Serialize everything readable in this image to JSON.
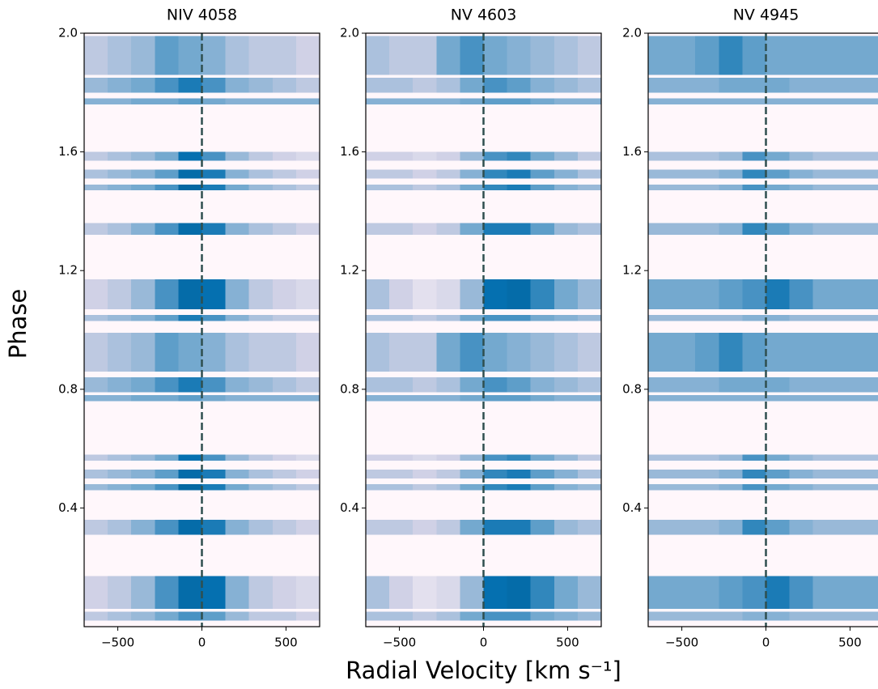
{
  "chart_data": [
    {
      "type": "heatmap",
      "title": "NIV 4058",
      "ylabel": "Phase",
      "xlim": [
        -700,
        700
      ],
      "xticks": [
        {
          "value": -500,
          "label": "−500"
        },
        0,
        500
      ],
      "ylim": [
        0,
        2
      ],
      "yticks": [
        0.4,
        0.8,
        1.2,
        {
          "value": 1.6,
          "label": "1.6"
        },
        {
          "value": 2,
          "label": "2.0"
        }
      ],
      "background": "#fff7fb",
      "colormap": [
        "#fff7fb",
        "#d0d1e6",
        "#74a9cf",
        "#0570b0",
        "#045a8d"
      ],
      "vline": 0,
      "vline_color": "#2f4f4f",
      "x_bins": [
        -700,
        -560,
        -420,
        -280,
        -140,
        0,
        140,
        280,
        420,
        560,
        700
      ],
      "y_bins": [
        [
          1.86,
          1.99
        ],
        [
          1.8,
          1.85
        ],
        [
          1.76,
          1.78
        ],
        [
          1.57,
          1.6
        ],
        [
          1.51,
          1.54
        ],
        [
          1.47,
          1.49
        ],
        [
          1.32,
          1.36
        ],
        [
          1.07,
          1.17
        ],
        [
          1.03,
          1.05
        ],
        [
          0.86,
          0.99
        ],
        [
          0.79,
          0.84
        ],
        [
          0.76,
          0.78
        ],
        [
          0.56,
          0.58
        ],
        [
          0.5,
          0.53
        ],
        [
          0.46,
          0.48
        ],
        [
          0.31,
          0.36
        ],
        [
          0.06,
          0.17
        ],
        [
          0.02,
          0.05
        ]
      ],
      "z": [
        [
          0.3,
          0.35,
          0.4,
          0.55,
          0.5,
          0.45,
          0.35,
          0.3,
          0.3,
          0.25
        ],
        [
          0.4,
          0.45,
          0.5,
          0.6,
          0.7,
          0.6,
          0.45,
          0.4,
          0.35,
          0.3
        ],
        [
          0.45,
          0.45,
          0.5,
          0.5,
          0.55,
          0.5,
          0.45,
          0.45,
          0.45,
          0.45
        ],
        [
          0.3,
          0.35,
          0.4,
          0.5,
          0.75,
          0.6,
          0.4,
          0.3,
          0.25,
          0.2
        ],
        [
          0.35,
          0.4,
          0.45,
          0.55,
          0.8,
          0.7,
          0.45,
          0.35,
          0.3,
          0.25
        ],
        [
          0.4,
          0.45,
          0.5,
          0.6,
          0.85,
          0.7,
          0.5,
          0.4,
          0.35,
          0.3
        ],
        [
          0.3,
          0.35,
          0.45,
          0.6,
          0.8,
          0.7,
          0.45,
          0.35,
          0.3,
          0.25
        ],
        [
          0.25,
          0.3,
          0.4,
          0.6,
          0.8,
          0.75,
          0.45,
          0.3,
          0.25,
          0.2
        ],
        [
          0.35,
          0.4,
          0.45,
          0.55,
          0.7,
          0.6,
          0.45,
          0.35,
          0.3,
          0.3
        ],
        [
          0.3,
          0.35,
          0.4,
          0.55,
          0.5,
          0.45,
          0.35,
          0.3,
          0.3,
          0.25
        ],
        [
          0.4,
          0.45,
          0.5,
          0.6,
          0.7,
          0.6,
          0.45,
          0.4,
          0.35,
          0.3
        ],
        [
          0.45,
          0.45,
          0.5,
          0.5,
          0.55,
          0.5,
          0.45,
          0.45,
          0.45,
          0.45
        ],
        [
          0.3,
          0.35,
          0.4,
          0.5,
          0.75,
          0.6,
          0.4,
          0.3,
          0.25,
          0.2
        ],
        [
          0.35,
          0.4,
          0.45,
          0.55,
          0.8,
          0.7,
          0.45,
          0.35,
          0.3,
          0.25
        ],
        [
          0.4,
          0.45,
          0.5,
          0.6,
          0.85,
          0.7,
          0.5,
          0.4,
          0.35,
          0.3
        ],
        [
          0.3,
          0.35,
          0.45,
          0.6,
          0.8,
          0.7,
          0.45,
          0.35,
          0.3,
          0.25
        ],
        [
          0.25,
          0.3,
          0.4,
          0.6,
          0.8,
          0.75,
          0.45,
          0.3,
          0.25,
          0.2
        ],
        [
          0.3,
          0.35,
          0.4,
          0.5,
          0.6,
          0.55,
          0.4,
          0.3,
          0.3,
          0.25
        ]
      ]
    },
    {
      "type": "heatmap",
      "title": "NV 4603",
      "xlabel": "Radial Velocity [km s⁻¹]",
      "xlim": [
        -700,
        700
      ],
      "xticks": [
        {
          "value": -500,
          "label": "−500"
        },
        0,
        500
      ],
      "ylim": [
        0,
        2
      ],
      "yticks": [
        0.4,
        0.8,
        1.2,
        {
          "value": 1.6,
          "label": "1.6"
        },
        {
          "value": 2,
          "label": "2.0"
        }
      ],
      "background": "#fff7fb",
      "colormap": [
        "#fff7fb",
        "#d0d1e6",
        "#74a9cf",
        "#0570b0",
        "#045a8d"
      ],
      "vline": 0,
      "vline_color": "#2f4f4f",
      "x_bins": [
        -700,
        -560,
        -420,
        -280,
        -140,
        0,
        140,
        280,
        420,
        560,
        700
      ],
      "y_bins": [
        [
          1.86,
          1.99
        ],
        [
          1.8,
          1.85
        ],
        [
          1.76,
          1.78
        ],
        [
          1.57,
          1.6
        ],
        [
          1.51,
          1.54
        ],
        [
          1.47,
          1.49
        ],
        [
          1.32,
          1.36
        ],
        [
          1.07,
          1.17
        ],
        [
          1.03,
          1.05
        ],
        [
          0.86,
          0.99
        ],
        [
          0.79,
          0.84
        ],
        [
          0.76,
          0.78
        ],
        [
          0.56,
          0.58
        ],
        [
          0.5,
          0.53
        ],
        [
          0.46,
          0.48
        ],
        [
          0.31,
          0.36
        ],
        [
          0.06,
          0.17
        ],
        [
          0.02,
          0.05
        ]
      ],
      "z": [
        [
          0.35,
          0.3,
          0.3,
          0.5,
          0.6,
          0.5,
          0.45,
          0.4,
          0.35,
          0.3
        ],
        [
          0.35,
          0.35,
          0.3,
          0.35,
          0.5,
          0.6,
          0.55,
          0.45,
          0.4,
          0.35
        ],
        [
          0.45,
          0.45,
          0.45,
          0.45,
          0.5,
          0.55,
          0.55,
          0.5,
          0.45,
          0.45
        ],
        [
          0.25,
          0.25,
          0.2,
          0.25,
          0.4,
          0.6,
          0.65,
          0.5,
          0.4,
          0.3
        ],
        [
          0.3,
          0.3,
          0.25,
          0.3,
          0.45,
          0.65,
          0.7,
          0.55,
          0.45,
          0.35
        ],
        [
          0.35,
          0.35,
          0.3,
          0.35,
          0.5,
          0.65,
          0.7,
          0.55,
          0.45,
          0.4
        ],
        [
          0.3,
          0.3,
          0.25,
          0.3,
          0.5,
          0.7,
          0.7,
          0.55,
          0.4,
          0.35
        ],
        [
          0.35,
          0.25,
          0.15,
          0.2,
          0.4,
          0.75,
          0.8,
          0.65,
          0.5,
          0.4
        ],
        [
          0.35,
          0.35,
          0.3,
          0.35,
          0.5,
          0.6,
          0.6,
          0.5,
          0.45,
          0.4
        ],
        [
          0.35,
          0.3,
          0.3,
          0.5,
          0.6,
          0.5,
          0.45,
          0.4,
          0.35,
          0.3
        ],
        [
          0.35,
          0.35,
          0.3,
          0.35,
          0.5,
          0.6,
          0.55,
          0.45,
          0.4,
          0.35
        ],
        [
          0.45,
          0.45,
          0.45,
          0.45,
          0.5,
          0.55,
          0.55,
          0.5,
          0.45,
          0.45
        ],
        [
          0.25,
          0.25,
          0.2,
          0.25,
          0.4,
          0.6,
          0.65,
          0.5,
          0.4,
          0.3
        ],
        [
          0.3,
          0.3,
          0.25,
          0.3,
          0.45,
          0.65,
          0.7,
          0.55,
          0.45,
          0.35
        ],
        [
          0.35,
          0.35,
          0.3,
          0.35,
          0.5,
          0.65,
          0.7,
          0.55,
          0.45,
          0.4
        ],
        [
          0.3,
          0.3,
          0.25,
          0.3,
          0.5,
          0.7,
          0.7,
          0.55,
          0.4,
          0.35
        ],
        [
          0.35,
          0.25,
          0.15,
          0.2,
          0.4,
          0.75,
          0.8,
          0.65,
          0.5,
          0.4
        ],
        [
          0.35,
          0.35,
          0.3,
          0.35,
          0.5,
          0.6,
          0.6,
          0.5,
          0.45,
          0.4
        ]
      ]
    },
    {
      "type": "heatmap",
      "title": "NV 4945",
      "xlim": [
        -700,
        700
      ],
      "xticks": [
        {
          "value": -500,
          "label": "−500"
        },
        0,
        500
      ],
      "ylim": [
        0,
        2
      ],
      "yticks": [
        0.4,
        0.8,
        1.2,
        {
          "value": 1.6,
          "label": "1.6"
        },
        {
          "value": 2,
          "label": "2.0"
        }
      ],
      "background": "#fff7fb",
      "colormap": [
        "#fff7fb",
        "#d0d1e6",
        "#74a9cf",
        "#0570b0",
        "#045a8d"
      ],
      "vline": 0,
      "vline_color": "#2f4f4f",
      "x_bins": [
        -700,
        -560,
        -420,
        -280,
        -140,
        0,
        140,
        280,
        420,
        560,
        700
      ],
      "y_bins": [
        [
          1.86,
          1.99
        ],
        [
          1.8,
          1.85
        ],
        [
          1.76,
          1.78
        ],
        [
          1.57,
          1.6
        ],
        [
          1.51,
          1.54
        ],
        [
          1.47,
          1.49
        ],
        [
          1.32,
          1.36
        ],
        [
          1.07,
          1.17
        ],
        [
          1.03,
          1.05
        ],
        [
          0.86,
          0.99
        ],
        [
          0.79,
          0.84
        ],
        [
          0.76,
          0.78
        ],
        [
          0.56,
          0.58
        ],
        [
          0.5,
          0.53
        ],
        [
          0.46,
          0.48
        ],
        [
          0.31,
          0.36
        ],
        [
          0.06,
          0.17
        ],
        [
          0.02,
          0.05
        ]
      ],
      "z": [
        [
          0.5,
          0.5,
          0.55,
          0.65,
          0.55,
          0.5,
          0.5,
          0.5,
          0.5,
          0.5
        ],
        [
          0.45,
          0.45,
          0.45,
          0.5,
          0.5,
          0.5,
          0.45,
          0.45,
          0.45,
          0.45
        ],
        [
          0.45,
          0.45,
          0.45,
          0.45,
          0.45,
          0.45,
          0.45,
          0.45,
          0.45,
          0.45
        ],
        [
          0.35,
          0.35,
          0.35,
          0.4,
          0.6,
          0.5,
          0.4,
          0.35,
          0.35,
          0.35
        ],
        [
          0.4,
          0.4,
          0.4,
          0.45,
          0.65,
          0.55,
          0.45,
          0.4,
          0.4,
          0.4
        ],
        [
          0.4,
          0.4,
          0.4,
          0.45,
          0.6,
          0.5,
          0.45,
          0.4,
          0.4,
          0.4
        ],
        [
          0.4,
          0.4,
          0.4,
          0.45,
          0.65,
          0.55,
          0.45,
          0.4,
          0.4,
          0.4
        ],
        [
          0.5,
          0.5,
          0.5,
          0.55,
          0.6,
          0.7,
          0.6,
          0.5,
          0.5,
          0.5
        ],
        [
          0.4,
          0.4,
          0.4,
          0.4,
          0.45,
          0.45,
          0.4,
          0.4,
          0.4,
          0.4
        ],
        [
          0.5,
          0.5,
          0.55,
          0.65,
          0.55,
          0.5,
          0.5,
          0.5,
          0.5,
          0.5
        ],
        [
          0.45,
          0.45,
          0.45,
          0.5,
          0.5,
          0.5,
          0.45,
          0.45,
          0.45,
          0.45
        ],
        [
          0.45,
          0.45,
          0.45,
          0.45,
          0.45,
          0.45,
          0.45,
          0.45,
          0.45,
          0.45
        ],
        [
          0.35,
          0.35,
          0.35,
          0.4,
          0.6,
          0.5,
          0.4,
          0.35,
          0.35,
          0.35
        ],
        [
          0.4,
          0.4,
          0.4,
          0.45,
          0.65,
          0.55,
          0.45,
          0.4,
          0.4,
          0.4
        ],
        [
          0.4,
          0.4,
          0.4,
          0.45,
          0.6,
          0.5,
          0.45,
          0.4,
          0.4,
          0.4
        ],
        [
          0.4,
          0.4,
          0.4,
          0.45,
          0.65,
          0.55,
          0.45,
          0.4,
          0.4,
          0.4
        ],
        [
          0.5,
          0.5,
          0.5,
          0.55,
          0.6,
          0.7,
          0.6,
          0.5,
          0.5,
          0.5
        ],
        [
          0.4,
          0.4,
          0.4,
          0.4,
          0.45,
          0.45,
          0.4,
          0.4,
          0.4,
          0.4
        ]
      ]
    }
  ]
}
